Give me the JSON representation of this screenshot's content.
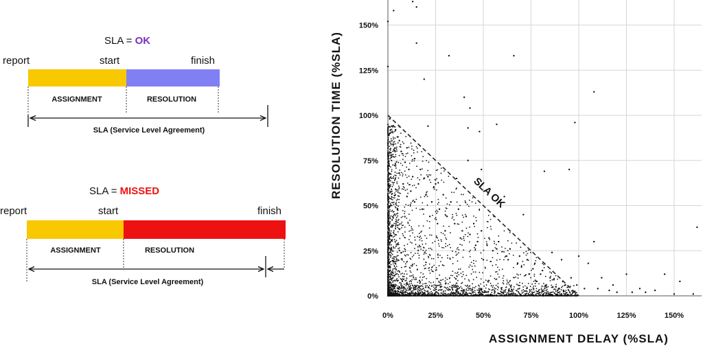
{
  "diagram": {
    "ok": {
      "title_prefix": "SLA = ",
      "status": "OK",
      "status_color": "#7b2fbf",
      "labels": {
        "report": "report",
        "start": "start",
        "finish": "finish"
      },
      "assignment_label": "ASSIGNMENT",
      "resolution_label": "RESOLUTION",
      "sla_label": "SLA (Service Level Agreement)",
      "assignment_color": "#f8c800",
      "resolution_color": "#8080f4"
    },
    "missed": {
      "title_prefix": "SLA = ",
      "status": "MISSED",
      "status_color": "#ee1111",
      "labels": {
        "report": "report",
        "start": "start",
        "finish": "finish"
      },
      "assignment_label": "ASSIGNMENT",
      "resolution_label": "RESOLUTION",
      "sla_label": "SLA (Service Level Agreement)",
      "assignment_color": "#f8c800",
      "resolution_color": "#ee1111"
    }
  },
  "chart_data": {
    "type": "scatter",
    "xlabel": "ASSIGNMENT DELAY (%SLA)",
    "ylabel": "RESOLUTION TIME (%SLA)",
    "xlim": [
      0,
      165
    ],
    "ylim": [
      0,
      160
    ],
    "xticks": [
      0,
      25,
      50,
      75,
      100,
      125,
      150
    ],
    "xtick_labels": [
      "0%",
      "25%",
      "50%",
      "75%",
      "100%",
      "125%",
      "150%"
    ],
    "yticks": [
      0,
      25,
      50,
      75,
      100,
      125,
      150
    ],
    "ytick_labels": [
      "0%",
      "25%",
      "50%",
      "75%",
      "100%",
      "125%",
      "150%"
    ],
    "grid": true,
    "reference_line": {
      "label": "SLA OK",
      "from": [
        0,
        100
      ],
      "to": [
        100,
        0
      ],
      "style": "dashed"
    },
    "points": [
      [
        3,
        158
      ],
      [
        13,
        163
      ],
      [
        15,
        160
      ],
      [
        0,
        152
      ],
      [
        15,
        140
      ],
      [
        32,
        133
      ],
      [
        0,
        127
      ],
      [
        66,
        133
      ],
      [
        40,
        110
      ],
      [
        43,
        104
      ],
      [
        98,
        96
      ],
      [
        108,
        113
      ],
      [
        57,
        95
      ],
      [
        48,
        91
      ],
      [
        42,
        93
      ],
      [
        21,
        94
      ],
      [
        19,
        120
      ],
      [
        49,
        70
      ],
      [
        82,
        69
      ],
      [
        95,
        70
      ],
      [
        42,
        75
      ],
      [
        36,
        65
      ],
      [
        24,
        60
      ],
      [
        10,
        55
      ],
      [
        5,
        48
      ],
      [
        61,
        55
      ],
      [
        71,
        45
      ],
      [
        86,
        24
      ],
      [
        108,
        30
      ],
      [
        91,
        20
      ],
      [
        100,
        22
      ],
      [
        105,
        18
      ],
      [
        96,
        10
      ],
      [
        112,
        10
      ],
      [
        125,
        12
      ],
      [
        145,
        12
      ],
      [
        153,
        8
      ],
      [
        162,
        38
      ],
      [
        118,
        6
      ],
      [
        132,
        4
      ],
      [
        140,
        3
      ],
      [
        99,
        6
      ],
      [
        103,
        4
      ],
      [
        110,
        4
      ],
      [
        116,
        3
      ],
      [
        120,
        2
      ],
      [
        128,
        2
      ],
      [
        135,
        2
      ],
      [
        150,
        1
      ],
      [
        160,
        1
      ],
      [
        85,
        10
      ],
      [
        80,
        12
      ],
      [
        76,
        15
      ],
      [
        68,
        18
      ],
      [
        62,
        22
      ],
      [
        55,
        25
      ],
      [
        50,
        20
      ],
      [
        46,
        28
      ],
      [
        38,
        32
      ],
      [
        30,
        36
      ],
      [
        26,
        40
      ],
      [
        22,
        44
      ],
      [
        18,
        48
      ],
      [
        14,
        52
      ],
      [
        12,
        58
      ],
      [
        8,
        62
      ],
      [
        6,
        68
      ],
      [
        4,
        72
      ],
      [
        2,
        78
      ],
      [
        3,
        84
      ],
      [
        5,
        88
      ],
      [
        7,
        80
      ],
      [
        9,
        74
      ],
      [
        11,
        70
      ],
      [
        13,
        66
      ],
      [
        16,
        62
      ],
      [
        20,
        56
      ],
      [
        23,
        52
      ],
      [
        27,
        48
      ],
      [
        31,
        44
      ],
      [
        35,
        40
      ],
      [
        39,
        36
      ],
      [
        43,
        34
      ],
      [
        47,
        30
      ],
      [
        52,
        28
      ],
      [
        57,
        26
      ],
      [
        63,
        20
      ],
      [
        70,
        16
      ],
      [
        74,
        12
      ],
      [
        78,
        8
      ],
      [
        83,
        6
      ],
      [
        88,
        5
      ],
      [
        92,
        3
      ],
      [
        97,
        2
      ],
      [
        1,
        90
      ],
      [
        2,
        94
      ],
      [
        1,
        98
      ],
      [
        4,
        92
      ],
      [
        6,
        86
      ],
      [
        10,
        82
      ],
      [
        14,
        76
      ],
      [
        17,
        70
      ],
      [
        21,
        66
      ],
      [
        25,
        62
      ],
      [
        29,
        56
      ],
      [
        33,
        52
      ],
      [
        37,
        48
      ],
      [
        41,
        44
      ],
      [
        45,
        40
      ],
      [
        49,
        36
      ],
      [
        53,
        32
      ],
      [
        58,
        30
      ],
      [
        64,
        26
      ],
      [
        69,
        22
      ],
      [
        73,
        20
      ],
      [
        77,
        18
      ],
      [
        81,
        14
      ],
      [
        87,
        9
      ],
      [
        93,
        6
      ]
    ]
  }
}
